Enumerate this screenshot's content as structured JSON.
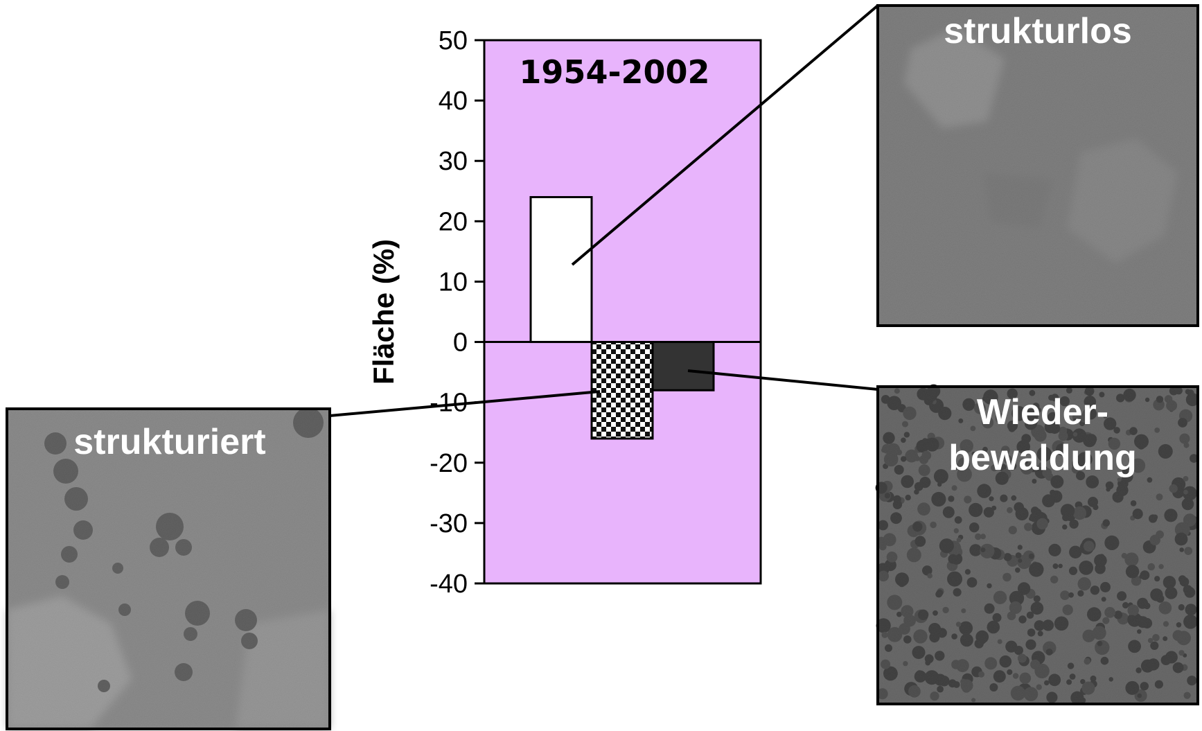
{
  "chart_data": {
    "type": "bar",
    "title": "1954-2002",
    "ylabel": "Fläche (%)",
    "xlabel": "",
    "ylim": [
      -40,
      50
    ],
    "yticks": [
      50,
      40,
      30,
      20,
      10,
      0,
      -10,
      -20,
      -30,
      -40
    ],
    "categories": [
      "strukturlos",
      "strukturiert",
      "Wiederbewaldung"
    ],
    "values": [
      24,
      -16,
      -8
    ],
    "plot_background": "#e8b4fc",
    "bar_fills": [
      "#ffffff",
      "checker",
      "#333333"
    ],
    "grid": false,
    "legend": "none"
  },
  "photos": {
    "structureless": {
      "label": "strukturlos"
    },
    "structured": {
      "label": "strukturiert"
    },
    "reforestation": {
      "label_line1": "Wieder-",
      "label_line2": "bewaldung"
    }
  },
  "colors": {
    "plot_bg": "#e8b4fc",
    "bar_dark": "#333333",
    "photo_light": "#8a8a8a",
    "photo_forest": "#5b5b5b"
  }
}
